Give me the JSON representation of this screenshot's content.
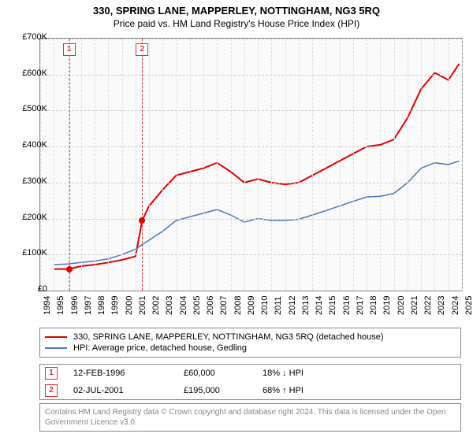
{
  "title": "330, SPRING LANE, MAPPERLEY, NOTTINGHAM, NG3 5RQ",
  "subtitle": "Price paid vs. HM Land Registry's House Price Index (HPI)",
  "chart": {
    "type": "line",
    "background_color": "#fafafa",
    "grid_color": "#cccccc",
    "border_color": "#888888",
    "ylim": [
      0,
      700000
    ],
    "ytick_step": 100000,
    "yticks": [
      "£0",
      "£100K",
      "£200K",
      "£300K",
      "£400K",
      "£500K",
      "£600K",
      "£700K"
    ],
    "xlim": [
      1994,
      2025
    ],
    "xticks": [
      1994,
      1995,
      1996,
      1997,
      1998,
      1999,
      2000,
      2001,
      2002,
      2003,
      2004,
      2005,
      2006,
      2007,
      2008,
      2009,
      2010,
      2011,
      2012,
      2013,
      2014,
      2015,
      2016,
      2017,
      2018,
      2019,
      2020,
      2021,
      2022,
      2023,
      2024,
      2025
    ],
    "markers": [
      {
        "label": "1",
        "year": 1996.12
      },
      {
        "label": "2",
        "year": 2001.5
      }
    ],
    "sale_points": [
      {
        "year": 1996.12,
        "value": 60000
      },
      {
        "year": 2001.5,
        "value": 195000
      }
    ],
    "series": [
      {
        "name": "price_paid",
        "color": "#e00000",
        "line_width": 2,
        "points": [
          [
            1995,
            60000
          ],
          [
            1996.12,
            60000
          ],
          [
            1997,
            68000
          ],
          [
            1998,
            72000
          ],
          [
            1999,
            78000
          ],
          [
            2000,
            85000
          ],
          [
            2001,
            95000
          ],
          [
            2001.5,
            195000
          ],
          [
            2002,
            235000
          ],
          [
            2003,
            280000
          ],
          [
            2004,
            320000
          ],
          [
            2005,
            330000
          ],
          [
            2006,
            340000
          ],
          [
            2007,
            355000
          ],
          [
            2008,
            330000
          ],
          [
            2009,
            300000
          ],
          [
            2010,
            310000
          ],
          [
            2011,
            300000
          ],
          [
            2012,
            295000
          ],
          [
            2013,
            300000
          ],
          [
            2014,
            320000
          ],
          [
            2015,
            340000
          ],
          [
            2016,
            360000
          ],
          [
            2017,
            380000
          ],
          [
            2018,
            400000
          ],
          [
            2019,
            405000
          ],
          [
            2020,
            420000
          ],
          [
            2021,
            480000
          ],
          [
            2022,
            560000
          ],
          [
            2023,
            605000
          ],
          [
            2024,
            585000
          ],
          [
            2024.8,
            630000
          ]
        ]
      },
      {
        "name": "hpi",
        "color": "#4a7ab8",
        "line_width": 1.5,
        "points": [
          [
            1995,
            72000
          ],
          [
            1996,
            74000
          ],
          [
            1997,
            78000
          ],
          [
            1998,
            82000
          ],
          [
            1999,
            88000
          ],
          [
            2000,
            100000
          ],
          [
            2001,
            115000
          ],
          [
            2002,
            140000
          ],
          [
            2003,
            165000
          ],
          [
            2004,
            195000
          ],
          [
            2005,
            205000
          ],
          [
            2006,
            215000
          ],
          [
            2007,
            225000
          ],
          [
            2008,
            210000
          ],
          [
            2009,
            190000
          ],
          [
            2010,
            200000
          ],
          [
            2011,
            195000
          ],
          [
            2012,
            195000
          ],
          [
            2013,
            198000
          ],
          [
            2014,
            210000
          ],
          [
            2015,
            222000
          ],
          [
            2016,
            235000
          ],
          [
            2017,
            248000
          ],
          [
            2018,
            260000
          ],
          [
            2019,
            262000
          ],
          [
            2020,
            270000
          ],
          [
            2021,
            300000
          ],
          [
            2022,
            340000
          ],
          [
            2023,
            355000
          ],
          [
            2024,
            350000
          ],
          [
            2024.8,
            360000
          ]
        ]
      }
    ]
  },
  "legend": {
    "items": [
      {
        "color": "#e00000",
        "label": "330, SPRING LANE, MAPPERLEY, NOTTINGHAM, NG3 5RQ (detached house)"
      },
      {
        "color": "#4a7ab8",
        "label": "HPI: Average price, detached house, Gedling"
      }
    ]
  },
  "price_table": {
    "rows": [
      {
        "marker": "1",
        "date": "12-FEB-1996",
        "price": "£60,000",
        "pct": "18% ↓ HPI"
      },
      {
        "marker": "2",
        "date": "02-JUL-2001",
        "price": "£195,000",
        "pct": "68% ↑ HPI"
      }
    ]
  },
  "attribution": "Contains HM Land Registry data © Crown copyright and database right 2024. This data is licensed under the Open Government Licence v3.0."
}
